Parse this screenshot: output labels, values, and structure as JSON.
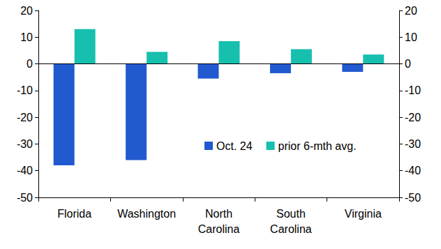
{
  "chart_data": {
    "type": "bar",
    "categories": [
      "Florida",
      "Washington",
      "North\nCarolina",
      "South\nCarolina",
      "Virginia"
    ],
    "series": [
      {
        "name": "Oct. 24",
        "color": "#2159cf",
        "values": [
          -38,
          -36,
          -5.5,
          -3.5,
          -3
        ]
      },
      {
        "name": "prior 6-mth avg.",
        "color": "#17bfae",
        "values": [
          13,
          4.5,
          8.5,
          5.5,
          3.5
        ]
      }
    ],
    "ylim": [
      -50,
      20
    ],
    "yticks": [
      -50,
      -40,
      -30,
      -20,
      -10,
      0,
      10,
      20
    ],
    "grid": false,
    "legend": "center right"
  }
}
